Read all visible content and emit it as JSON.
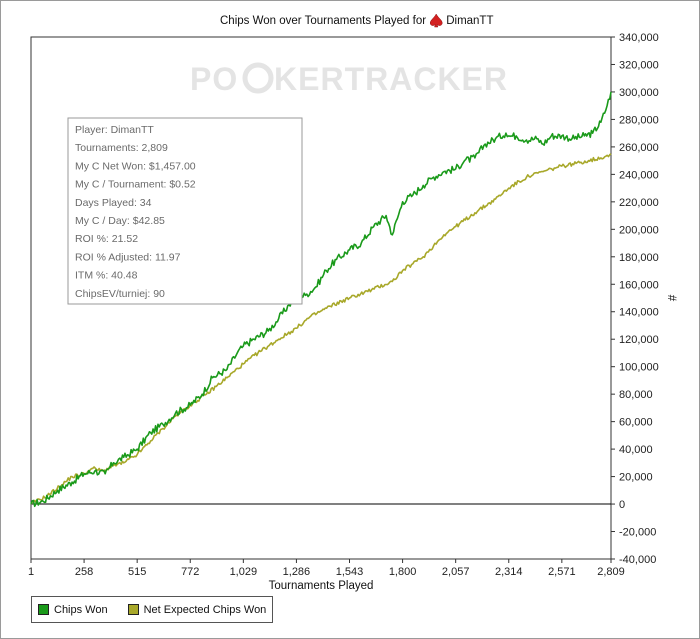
{
  "chart_data": {
    "type": "line",
    "title": "Chips Won over Tournaments Played for",
    "player_name": "DimanTT",
    "xlabel": "Tournaments Played",
    "ylabel": "#",
    "xlim": [
      1,
      2809
    ],
    "ylim": [
      -40000,
      340000
    ],
    "x_ticks": [
      "1",
      "258",
      "515",
      "772",
      "1,029",
      "1,286",
      "1,543",
      "1,800",
      "2,057",
      "2,314",
      "2,571",
      "2,809"
    ],
    "y_ticks": [
      "-40,000",
      "-20,000",
      "0",
      "20,000",
      "40,000",
      "60,000",
      "80,000",
      "100,000",
      "120,000",
      "140,000",
      "160,000",
      "180,000",
      "200,000",
      "220,000",
      "240,000",
      "260,000",
      "280,000",
      "300,000",
      "320,000",
      "340,000"
    ],
    "grid": false,
    "legend_position": "bottom-left",
    "watermark": "POKERTRACKER",
    "series": [
      {
        "name": "Chips Won",
        "color": "#1a9a1a",
        "x": [
          1,
          60,
          130,
          200,
          258,
          310,
          360,
          400,
          450,
          515,
          580,
          640,
          700,
          772,
          830,
          880,
          950,
          1000,
          1029,
          1080,
          1150,
          1200,
          1250,
          1286,
          1330,
          1380,
          1430,
          1480,
          1543,
          1600,
          1660,
          1720,
          1750,
          1800,
          1850,
          1900,
          1950,
          2000,
          2057,
          2100,
          2150,
          2200,
          2250,
          2300,
          2314,
          2350,
          2400,
          2450,
          2480,
          2520,
          2571,
          2620,
          2680,
          2720,
          2760,
          2790,
          2809
        ],
        "y": [
          0,
          2000,
          10000,
          16000,
          22000,
          24000,
          22000,
          30000,
          34000,
          40000,
          52000,
          58000,
          66000,
          72000,
          80000,
          92000,
          98000,
          110000,
          115000,
          120000,
          126000,
          135000,
          145000,
          150000,
          152000,
          158000,
          170000,
          178000,
          185000,
          190000,
          202000,
          210000,
          196000,
          220000,
          225000,
          232000,
          238000,
          242000,
          244000,
          250000,
          252000,
          262000,
          266000,
          270000,
          268000,
          268000,
          265000,
          266000,
          262000,
          268000,
          268000,
          266000,
          268000,
          270000,
          278000,
          290000,
          300000
        ]
      },
      {
        "name": "Net Expected Chips Won",
        "color": "#a8a82a",
        "x": [
          1,
          80,
          150,
          200,
          258,
          300,
          350,
          400,
          450,
          515,
          580,
          640,
          700,
          772,
          850,
          950,
          1029,
          1100,
          1200,
          1286,
          1350,
          1450,
          1543,
          1650,
          1750,
          1800,
          1850,
          1900,
          1950,
          2000,
          2057,
          2150,
          2250,
          2314,
          2400,
          2480,
          2571,
          2640,
          2700,
          2760,
          2809
        ],
        "y": [
          0,
          6000,
          14000,
          20000,
          22000,
          26000,
          24000,
          28000,
          30000,
          36000,
          46000,
          55000,
          64000,
          72000,
          80000,
          92000,
          102000,
          110000,
          120000,
          128000,
          136000,
          144000,
          150000,
          156000,
          162000,
          170000,
          175000,
          180000,
          188000,
          196000,
          202000,
          212000,
          222000,
          230000,
          238000,
          242000,
          246000,
          248000,
          250000,
          252000,
          255000
        ]
      }
    ]
  },
  "stats_box": {
    "lines": [
      "Player: DimanTT",
      "Tournaments: 2,809",
      "My C Net Won: $1,457.00",
      "My C / Tournament: $0.52",
      "Days Played: 34",
      "My C / Day: $42.85",
      "ROI %: 21.52",
      "ROI % Adjusted: 11.97",
      "ITM %: 40.48",
      "ChipsEV/turniej: 90"
    ]
  },
  "legend": {
    "items": [
      {
        "label": "Chips Won",
        "color": "#1a9a1a"
      },
      {
        "label": "Net Expected Chips Won",
        "color": "#a8a82a"
      }
    ]
  },
  "icons": {
    "title_icon": "spade-icon",
    "title_icon_color": "#d32020"
  }
}
